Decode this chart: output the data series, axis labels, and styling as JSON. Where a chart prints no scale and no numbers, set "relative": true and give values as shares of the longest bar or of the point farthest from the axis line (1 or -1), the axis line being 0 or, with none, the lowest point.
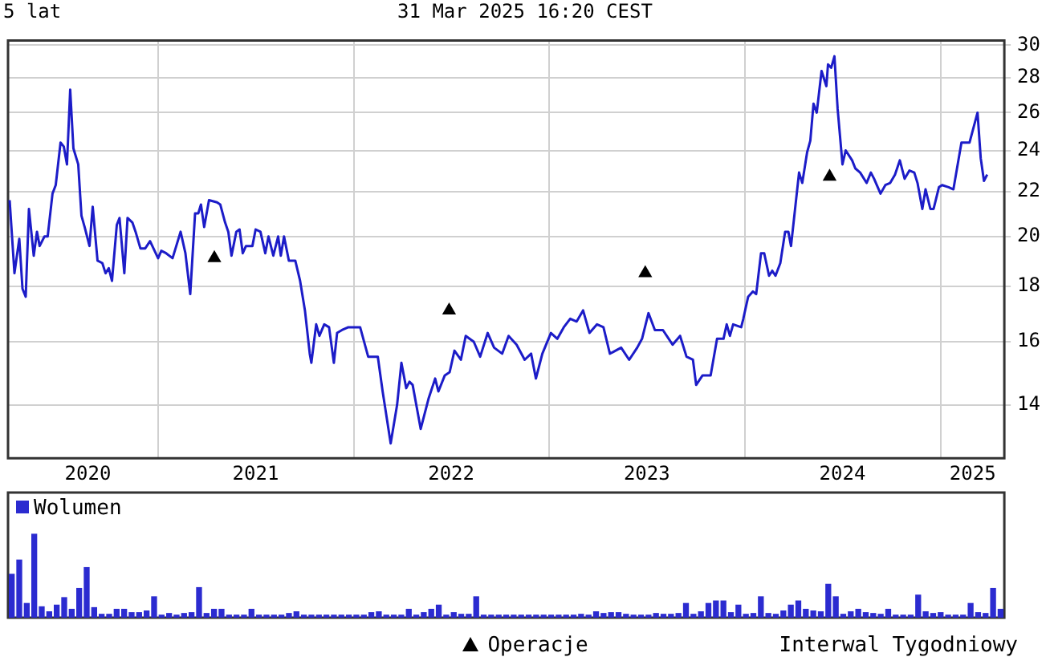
{
  "chart_data": [
    {
      "type": "line",
      "title": "5 lat",
      "subtitle": "31 Mar 2025 16:20 CEST",
      "log": true,
      "grid": true,
      "legend": "bottom",
      "xlim": [
        "2020-03-27",
        "2025-04-29"
      ],
      "xticks": [
        {
          "value": "2020-08-23",
          "label": "2020"
        },
        {
          "value": "2021-01-01",
          "label": null
        },
        {
          "value": "2021-07-02",
          "label": "2021"
        },
        {
          "value": "2022-01-01",
          "label": null
        },
        {
          "value": "2022-07-02",
          "label": "2022"
        },
        {
          "value": "2023-01-01",
          "label": null
        },
        {
          "value": "2023-07-02",
          "label": "2023"
        },
        {
          "value": "2024-01-01",
          "label": null
        },
        {
          "value": "2024-07-01",
          "label": "2024"
        },
        {
          "value": "2025-01-01",
          "label": null
        },
        {
          "value": "2025-03-01",
          "label": "2025"
        }
      ],
      "ylim": [
        12.5,
        30.3
      ],
      "yticks": [
        14,
        16,
        18,
        20,
        22,
        24,
        26,
        28,
        30
      ],
      "series": [
        {
          "color": "#1c1cc8",
          "marker": "none",
          "x": [
            "2020-03-30",
            "2020-04-08",
            "2020-04-17",
            "2020-04-23",
            "2020-04-29",
            "2020-05-05",
            "2020-05-14",
            "2020-05-20",
            "2020-05-25",
            "2020-06-03",
            "2020-06-09",
            "2020-06-18",
            "2020-06-24",
            "2020-07-03",
            "2020-07-09",
            "2020-07-15",
            "2020-07-21",
            "2020-07-27",
            "2020-08-05",
            "2020-08-11",
            "2020-08-17",
            "2020-08-26",
            "2020-09-01",
            "2020-09-10",
            "2020-09-19",
            "2020-09-25",
            "2020-10-01",
            "2020-10-07",
            "2020-10-16",
            "2020-10-21",
            "2020-10-30",
            "2020-11-05",
            "2020-11-14",
            "2020-11-20",
            "2020-11-29",
            "2020-12-08",
            "2020-12-17",
            "2021-01-01",
            "2021-01-07",
            "2021-01-16",
            "2021-01-28",
            "2021-02-12",
            "2021-02-21",
            "2021-03-02",
            "2021-03-11",
            "2021-03-17",
            "2021-03-22",
            "2021-03-28",
            "2021-04-06",
            "2021-04-21",
            "2021-04-27",
            "2021-05-06",
            "2021-05-12",
            "2021-05-18",
            "2021-05-27",
            "2021-06-02",
            "2021-06-08",
            "2021-06-14",
            "2021-06-26",
            "2021-07-02",
            "2021-07-11",
            "2021-07-20",
            "2021-07-26",
            "2021-08-04",
            "2021-08-13",
            "2021-08-18",
            "2021-08-24",
            "2021-09-02",
            "2021-09-14",
            "2021-09-23",
            "2021-10-02",
            "2021-10-11",
            "2021-10-14",
            "2021-10-23",
            "2021-10-29",
            "2021-11-07",
            "2021-11-16",
            "2021-11-25",
            "2021-12-01",
            "2021-12-10",
            "2021-12-22",
            "2022-01-01",
            "2022-01-13",
            "2022-01-28",
            "2022-02-15",
            "2022-02-24",
            "2022-03-11",
            "2022-03-23",
            "2022-03-31",
            "2022-04-09",
            "2022-04-15",
            "2022-04-21",
            "2022-05-06",
            "2022-05-21",
            "2022-06-02",
            "2022-06-08",
            "2022-06-20",
            "2022-06-29",
            "2022-07-08",
            "2022-07-20",
            "2022-07-29",
            "2022-08-13",
            "2022-08-25",
            "2022-09-08",
            "2022-09-20",
            "2022-10-05",
            "2022-10-17",
            "2022-11-01",
            "2022-11-16",
            "2022-11-28",
            "2022-12-07",
            "2022-12-19",
            "2023-01-04",
            "2023-01-16",
            "2023-01-28",
            "2023-02-09",
            "2023-02-21",
            "2023-03-05",
            "2023-03-17",
            "2023-03-31",
            "2023-04-12",
            "2023-04-24",
            "2023-05-15",
            "2023-05-30",
            "2023-06-14",
            "2023-06-23",
            "2023-07-05",
            "2023-07-17",
            "2023-08-01",
            "2023-08-19",
            "2023-09-02",
            "2023-09-14",
            "2023-09-26",
            "2023-10-02",
            "2023-10-14",
            "2023-10-29",
            "2023-11-10",
            "2023-11-22",
            "2023-11-28",
            "2023-12-04",
            "2023-12-10",
            "2023-12-25",
            "2023-12-29",
            "2024-01-07",
            "2024-01-16",
            "2024-01-22",
            "2024-01-31",
            "2024-02-06",
            "2024-02-15",
            "2024-02-21",
            "2024-02-27",
            "2024-03-07",
            "2024-03-16",
            "2024-03-22",
            "2024-03-27",
            "2024-04-11",
            "2024-04-17",
            "2024-04-26",
            "2024-05-02",
            "2024-05-08",
            "2024-05-14",
            "2024-05-23",
            "2024-06-01",
            "2024-06-04",
            "2024-06-10",
            "2024-06-16",
            "2024-06-22",
            "2024-07-01",
            "2024-07-07",
            "2024-07-19",
            "2024-07-25",
            "2024-08-03",
            "2024-08-15",
            "2024-08-23",
            "2024-08-29",
            "2024-09-10",
            "2024-09-19",
            "2024-09-28",
            "2024-10-07",
            "2024-10-16",
            "2024-10-25",
            "2024-11-03",
            "2024-11-12",
            "2024-11-18",
            "2024-11-27",
            "2024-12-03",
            "2024-12-12",
            "2024-12-18",
            "2024-12-28",
            "2025-01-03",
            "2025-01-15",
            "2025-01-24",
            "2025-02-08",
            "2025-02-17",
            "2025-02-23",
            "2025-03-10",
            "2025-03-16",
            "2025-03-22",
            "2025-03-28"
          ],
          "values": [
            21.6,
            18.5,
            19.9,
            17.9,
            17.6,
            21.2,
            19.2,
            20.2,
            19.6,
            20.0,
            20.0,
            21.9,
            22.3,
            24.4,
            24.2,
            23.3,
            27.3,
            24.1,
            23.3,
            20.9,
            20.4,
            19.6,
            21.3,
            19.0,
            18.9,
            18.5,
            18.7,
            18.2,
            20.5,
            20.8,
            18.5,
            20.8,
            20.6,
            20.2,
            19.5,
            19.5,
            19.8,
            19.1,
            19.4,
            19.3,
            19.1,
            20.2,
            19.3,
            17.7,
            21.0,
            21.0,
            21.4,
            20.4,
            21.6,
            21.5,
            21.4,
            20.6,
            20.2,
            19.2,
            20.2,
            20.3,
            19.3,
            19.6,
            19.6,
            20.3,
            20.2,
            19.3,
            20.0,
            19.2,
            20.0,
            19.2,
            20.0,
            19.0,
            19.0,
            18.2,
            17.1,
            15.6,
            15.3,
            16.6,
            16.2,
            16.6,
            16.5,
            15.3,
            16.3,
            16.4,
            16.5,
            16.5,
            16.5,
            15.5,
            15.5,
            14.4,
            12.9,
            14.0,
            15.3,
            14.5,
            14.7,
            14.6,
            13.3,
            14.2,
            14.8,
            14.4,
            14.9,
            15.0,
            15.7,
            15.4,
            16.2,
            16.0,
            15.5,
            16.3,
            15.8,
            15.6,
            16.2,
            15.9,
            15.4,
            15.6,
            14.8,
            15.6,
            16.3,
            16.1,
            16.5,
            16.8,
            16.7,
            17.1,
            16.3,
            16.6,
            16.5,
            15.6,
            15.8,
            15.4,
            15.8,
            16.1,
            17.0,
            16.4,
            16.4,
            15.9,
            16.2,
            15.5,
            15.4,
            14.6,
            14.9,
            14.9,
            16.1,
            16.1,
            16.6,
            16.2,
            16.6,
            16.5,
            16.8,
            17.6,
            17.8,
            17.7,
            19.3,
            19.3,
            18.4,
            18.6,
            18.4,
            18.9,
            20.2,
            20.2,
            19.6,
            22.9,
            22.4,
            23.9,
            24.5,
            26.5,
            26.0,
            28.4,
            27.5,
            28.8,
            28.6,
            29.3,
            26.2,
            23.3,
            24.0,
            23.5,
            23.1,
            22.9,
            22.4,
            22.9,
            22.6,
            21.9,
            22.3,
            22.4,
            22.8,
            23.5,
            22.6,
            23.0,
            22.9,
            22.4,
            21.2,
            22.1,
            21.2,
            21.2,
            22.2,
            22.3,
            22.2,
            22.1,
            24.4,
            24.4,
            24.4,
            26.0,
            23.6,
            22.5,
            22.8
          ]
        },
        {
          "type": "scatter",
          "name": "Operacje",
          "color": "#000000",
          "marker": "triangle",
          "x": [
            "2021-04-16",
            "2022-06-28",
            "2023-06-29",
            "2024-06-07"
          ],
          "values": [
            19.1,
            17.1,
            18.5,
            22.7
          ]
        }
      ]
    },
    {
      "type": "bar",
      "relative": true,
      "grid": false,
      "legend": "top left",
      "annotations": [
        "Interwal Tygodniowy"
      ],
      "categories": [
        null,
        null,
        null,
        null,
        null,
        null,
        null,
        null,
        null,
        null,
        null,
        null,
        null,
        null,
        null,
        null,
        null,
        null,
        null,
        null,
        null,
        null,
        null,
        null,
        null,
        null,
        null,
        null,
        null,
        null,
        null,
        null,
        null,
        null,
        null,
        null,
        null,
        null,
        null,
        null,
        null,
        null,
        null,
        null,
        null,
        null,
        null,
        null,
        null,
        null,
        null,
        null,
        null,
        null,
        null,
        null,
        null,
        null,
        null,
        null,
        null,
        null,
        null,
        null,
        null,
        null,
        null,
        null,
        null,
        null,
        null,
        null,
        null,
        null,
        null,
        null,
        null,
        null,
        null,
        null,
        null,
        null,
        null,
        null,
        null,
        null,
        null,
        null,
        null,
        null,
        null,
        null,
        null,
        null,
        null,
        null,
        null,
        null,
        null,
        null,
        null,
        null,
        null,
        null,
        null,
        null,
        null,
        null,
        null,
        null,
        null,
        null,
        null,
        null,
        null,
        null,
        null,
        null,
        null,
        null,
        null,
        null,
        null,
        null,
        null,
        null,
        null,
        null,
        null,
        null,
        null,
        null,
        null
      ],
      "series": [
        {
          "name": "Wolumen",
          "color": "#2b2bd0",
          "values": [
            0.52,
            0.69,
            0.17,
            1.0,
            0.13,
            0.07,
            0.15,
            0.24,
            0.1,
            0.35,
            0.6,
            0.12,
            0.04,
            0.04,
            0.1,
            0.1,
            0.06,
            0.06,
            0.08,
            0.25,
            0.03,
            0.05,
            0.03,
            0.05,
            0.06,
            0.36,
            0.05,
            0.1,
            0.1,
            0.03,
            0.03,
            0.03,
            0.1,
            0.03,
            0.03,
            0.03,
            0.03,
            0.05,
            0.07,
            0.03,
            0.03,
            0.03,
            0.03,
            0.03,
            0.03,
            0.03,
            0.03,
            0.03,
            0.06,
            0.07,
            0.03,
            0.03,
            0.03,
            0.1,
            0.03,
            0.06,
            0.1,
            0.15,
            0.03,
            0.06,
            0.04,
            0.04,
            0.25,
            0.03,
            0.03,
            0.03,
            0.03,
            0.03,
            0.03,
            0.03,
            0.03,
            0.03,
            0.03,
            0.03,
            0.03,
            0.03,
            0.04,
            0.03,
            0.07,
            0.05,
            0.06,
            0.06,
            0.04,
            0.03,
            0.03,
            0.03,
            0.05,
            0.04,
            0.04,
            0.05,
            0.17,
            0.04,
            0.07,
            0.17,
            0.2,
            0.2,
            0.06,
            0.15,
            0.04,
            0.05,
            0.25,
            0.05,
            0.04,
            0.08,
            0.15,
            0.2,
            0.1,
            0.08,
            0.07,
            0.4,
            0.25,
            0.04,
            0.07,
            0.1,
            0.06,
            0.05,
            0.04,
            0.1,
            0.03,
            0.03,
            0.03,
            0.27,
            0.07,
            0.05,
            0.06,
            0.03,
            0.03,
            0.03,
            0.17,
            0.06,
            0.05,
            0.35,
            0.1
          ]
        }
      ]
    }
  ]
}
